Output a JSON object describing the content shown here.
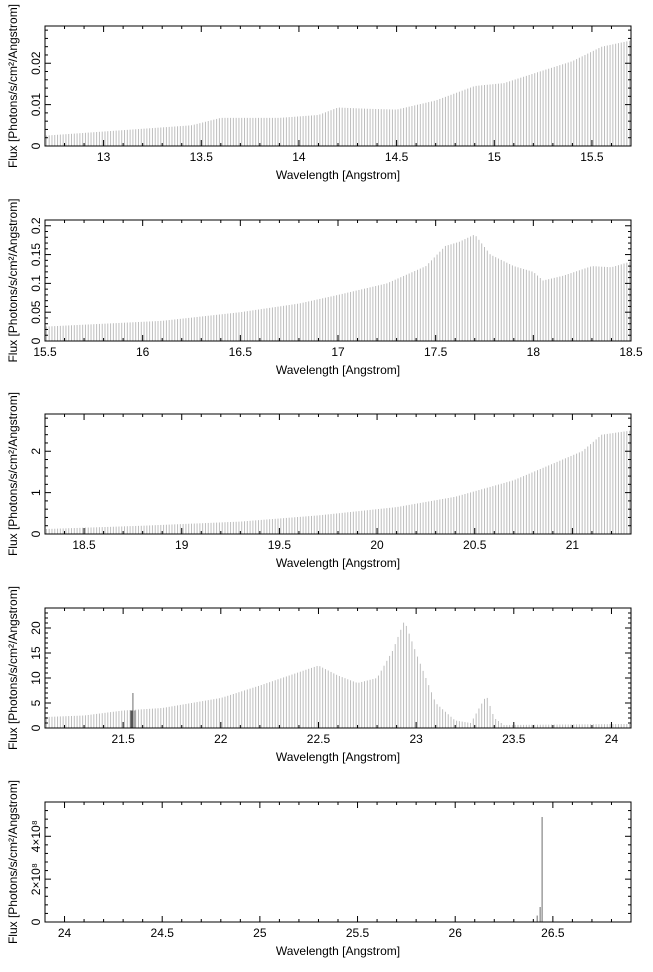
{
  "chart_data": [
    {
      "type": "bar",
      "xlabel": "Wavelength [Angstrom]",
      "ylabel": "Flux [Photons/s/cm²/Angstrom]",
      "xlim": [
        12.7,
        15.7
      ],
      "ylim": [
        0,
        0.029
      ],
      "xticks": [
        13,
        13.5,
        14,
        14.5,
        15,
        15.5
      ],
      "xtick_labels": [
        "13",
        "13.5",
        "14",
        "14.5",
        "15",
        "15.5"
      ],
      "yticks": [
        0,
        0.01,
        0.02
      ],
      "ytick_labels": [
        "0",
        "0.01",
        "0.02"
      ],
      "series": [
        {
          "x": [
            12.7,
            13.0,
            13.3,
            13.45,
            13.6,
            13.9,
            14.1,
            14.2,
            14.35,
            14.5,
            14.7,
            14.9,
            15.05,
            15.2,
            15.4,
            15.55,
            15.7
          ],
          "values": [
            0.0025,
            0.0035,
            0.0045,
            0.005,
            0.0068,
            0.0068,
            0.0075,
            0.0093,
            0.009,
            0.0088,
            0.011,
            0.0145,
            0.0152,
            0.0175,
            0.0205,
            0.024,
            0.0255
          ]
        }
      ],
      "grid": false
    },
    {
      "type": "bar",
      "xlabel": "Wavelength [Angstrom]",
      "ylabel": "Flux [Photons/s/cm²/Angstrom]",
      "xlim": [
        15.5,
        18.5
      ],
      "ylim": [
        0,
        0.21
      ],
      "xticks": [
        15.5,
        16,
        16.5,
        17,
        17.5,
        18,
        18.5
      ],
      "xtick_labels": [
        "15.5",
        "16",
        "16.5",
        "17",
        "17.5",
        "18",
        "18.5"
      ],
      "yticks": [
        0,
        0.05,
        0.1,
        0.15,
        0.2
      ],
      "ytick_labels": [
        "0",
        "0.05",
        "0.1",
        "0.15",
        "0.2"
      ],
      "series": [
        {
          "x": [
            15.5,
            15.8,
            16.1,
            16.5,
            16.8,
            17.0,
            17.25,
            17.45,
            17.55,
            17.62,
            17.7,
            17.78,
            17.9,
            18.0,
            18.05,
            18.15,
            18.3,
            18.4,
            18.5
          ],
          "values": [
            0.025,
            0.03,
            0.035,
            0.05,
            0.065,
            0.08,
            0.1,
            0.13,
            0.165,
            0.172,
            0.185,
            0.15,
            0.13,
            0.12,
            0.105,
            0.113,
            0.13,
            0.128,
            0.138
          ]
        }
      ],
      "grid": false
    },
    {
      "type": "bar",
      "xlabel": "Wavelength [Angstrom]",
      "ylabel": "Flux [Photons/s/cm²/Angstrom]",
      "xlim": [
        18.3,
        21.3
      ],
      "ylim": [
        0,
        2.9
      ],
      "xticks": [
        18.5,
        19,
        19.5,
        20,
        20.5,
        21
      ],
      "xtick_labels": [
        "18.5",
        "19",
        "19.5",
        "20",
        "20.5",
        "21"
      ],
      "yticks": [
        0,
        1,
        2
      ],
      "ytick_labels": [
        "0",
        "1",
        "2"
      ],
      "series": [
        {
          "x": [
            18.3,
            18.8,
            19.3,
            19.7,
            20.1,
            20.4,
            20.7,
            20.9,
            21.05,
            21.15,
            21.3
          ],
          "values": [
            0.12,
            0.2,
            0.3,
            0.45,
            0.65,
            0.9,
            1.3,
            1.7,
            2.0,
            2.4,
            2.5
          ]
        }
      ],
      "grid": false
    },
    {
      "type": "bar",
      "xlabel": "Wavelength [Angstrom]",
      "ylabel": "Flux [Photons/s/cm²/Angstrom]",
      "xlim": [
        21.1,
        24.1
      ],
      "ylim": [
        0,
        24
      ],
      "xticks": [
        21.5,
        22,
        22.5,
        23,
        23.5,
        24
      ],
      "xtick_labels": [
        "21.5",
        "22",
        "22.5",
        "23",
        "23.5",
        "24"
      ],
      "yticks": [
        0,
        5,
        10,
        15,
        20
      ],
      "ytick_labels": [
        "0",
        "5",
        "10",
        "15",
        "20"
      ],
      "series": [
        {
          "x": [
            21.1,
            21.3,
            21.5,
            21.7,
            22.0,
            22.2,
            22.35,
            22.5,
            22.6,
            22.7,
            22.8,
            22.88,
            22.94,
            23.0,
            23.1,
            23.2,
            23.28,
            23.33,
            23.36,
            23.4,
            23.45,
            24.1
          ],
          "values": [
            2.2,
            2.5,
            3.5,
            4.0,
            6.0,
            8.5,
            10.5,
            12.5,
            10.5,
            9.0,
            10.0,
            15.5,
            21.5,
            15.0,
            5.0,
            1.5,
            1.0,
            4.5,
            6.5,
            2.0,
            0.6,
            0.8
          ]
        }
      ],
      "spikes": [
        {
          "x": 21.55,
          "value": 7.0
        },
        {
          "x": 21.54,
          "value": 3.5
        },
        {
          "x": 21.56,
          "value": 3.5
        }
      ],
      "grid": false
    },
    {
      "type": "bar",
      "xlabel": "Wavelength [Angstrom]",
      "ylabel": "Flux [Photons/s/cm²/Angstrom]",
      "xlim": [
        23.9,
        26.9
      ],
      "ylim": [
        0,
        560000000.0
      ],
      "xticks": [
        24,
        24.5,
        25,
        25.5,
        26,
        26.5
      ],
      "xtick_labels": [
        "24",
        "24.5",
        "25",
        "25.5",
        "26",
        "26.5"
      ],
      "yticks": [
        0,
        200000000,
        400000000
      ],
      "ytick_labels": [
        "0",
        "2×10⁸",
        "4×10⁸"
      ],
      "series": [
        {
          "x": [
            23.9,
            26.9
          ],
          "values": [
            0,
            0
          ]
        }
      ],
      "spikes": [
        {
          "x": 26.42,
          "value": 30000000.0
        },
        {
          "x": 26.435,
          "value": 70000000.0
        },
        {
          "x": 26.445,
          "value": 490000000.0
        }
      ],
      "grid": false
    }
  ]
}
